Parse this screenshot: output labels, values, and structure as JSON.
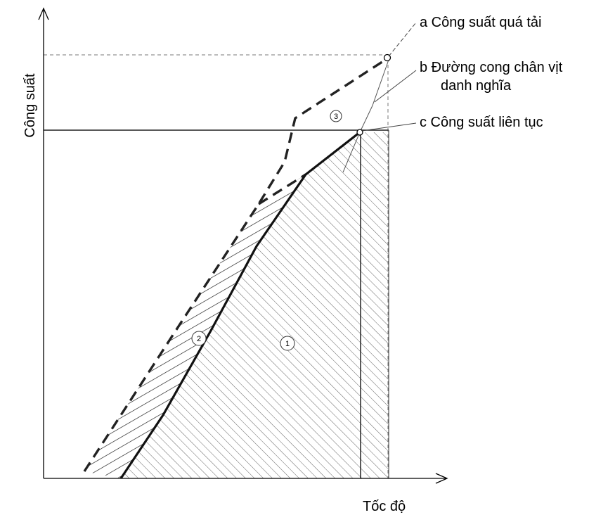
{
  "axes": {
    "y_label": "Công suất",
    "x_label": "Tốc độ"
  },
  "annotations": {
    "a": "a Công suất quá tải",
    "b_line1": "b  Đường cong chân vịt",
    "b_line2": "danh nghĩa",
    "c": "c   Công suất liên tục"
  },
  "zones": {
    "zone1": "1",
    "zone2": "2",
    "zone3": "3"
  }
}
